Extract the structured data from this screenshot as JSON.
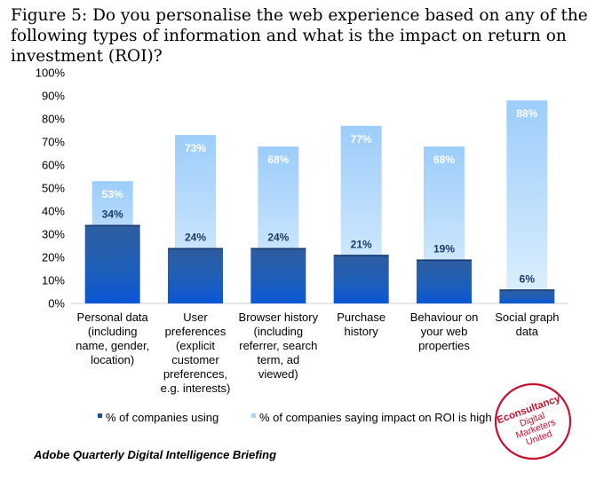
{
  "title": "Figure 5: Do you personalise the web experience based on any of the following types of information and what is the impact on return on investment (ROI)?",
  "source": "Adobe Quarterly Digital Intelligence Briefing",
  "logo": {
    "lines": [
      "Econsultancy",
      "Digital",
      "Marketers",
      "United"
    ]
  },
  "colors": {
    "using": "#1a4d94",
    "roi": "#a9d4fb",
    "logo": "#c8102e"
  },
  "chart_data": {
    "type": "bar",
    "categories": [
      [
        "Personal data",
        "(including",
        "name, gender,",
        "location)"
      ],
      [
        "User",
        "preferences",
        "(explicit",
        "customer",
        "preferences,",
        "e.g. interests)"
      ],
      [
        "Browser history",
        "(including",
        "referrer, search",
        "term, ad",
        "viewed)"
      ],
      [
        "Purchase",
        "history"
      ],
      [
        "Behaviour on",
        "your web",
        "properties"
      ],
      [
        "Social graph",
        "data"
      ]
    ],
    "series": [
      {
        "name": "% of companies using",
        "values": [
          34,
          24,
          24,
          21,
          19,
          6
        ],
        "labels": [
          "34%",
          "24%",
          "24%",
          "21%",
          "19%",
          "6%"
        ]
      },
      {
        "name": "% of companies saying impact on ROI is high",
        "values": [
          53,
          73,
          68,
          77,
          68,
          88
        ],
        "labels": [
          "53%",
          "73%",
          "68%",
          "77%",
          "68%",
          "88%"
        ]
      }
    ],
    "yticks": [
      "0%",
      "10%",
      "20%",
      "30%",
      "40%",
      "50%",
      "60%",
      "70%",
      "80%",
      "90%",
      "100%"
    ],
    "ylim": [
      0,
      100
    ],
    "grid": false,
    "legend_position": "bottom"
  }
}
